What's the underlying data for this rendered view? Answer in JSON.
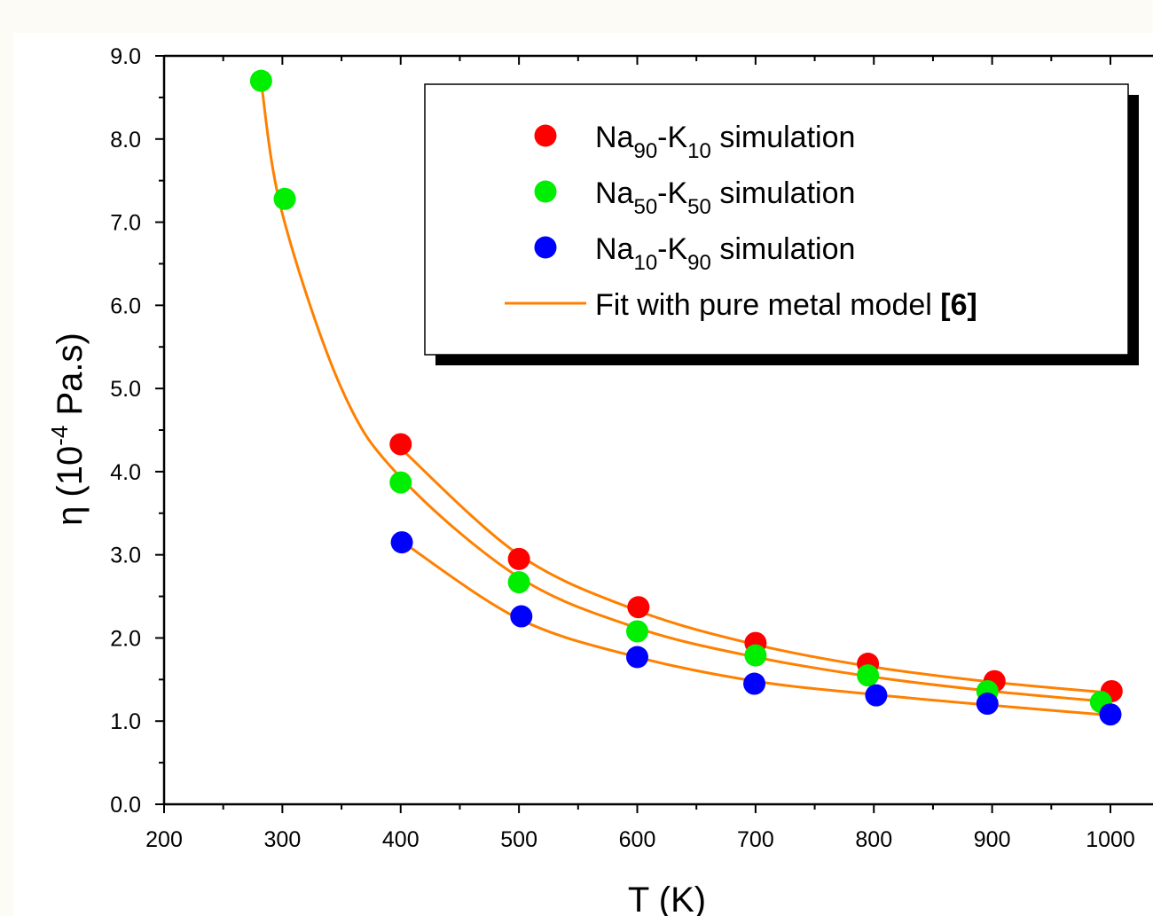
{
  "chart_data": {
    "type": "scatter",
    "title": "",
    "xlabel": {
      "text": "T (K)"
    },
    "ylabel": {
      "symbol": "η",
      "prefix": "(10",
      "exponent": "-4",
      "suffix": " Pa.s)"
    },
    "xlim": [
      200,
      1000
    ],
    "ylim": [
      0,
      9
    ],
    "x_ticks": [
      "200",
      "300",
      "400",
      "500",
      "600",
      "700",
      "800",
      "900",
      "1000"
    ],
    "y_ticks": [
      "0.0",
      "1.0",
      "2.0",
      "3.0",
      "4.0",
      "5.0",
      "6.0",
      "7.0",
      "8.0",
      "9.0"
    ],
    "grid": false,
    "legend_position": "top-right",
    "series": [
      {
        "kind": "points",
        "color": "#ff0000",
        "legend": {
          "base1": "Na",
          "sub1": "90",
          "mid": "-K",
          "sub2": "10",
          "suffix": " simulation"
        },
        "x": [
          400,
          500,
          601,
          700,
          795,
          902,
          1001
        ],
        "y": [
          4.33,
          2.95,
          2.37,
          1.94,
          1.69,
          1.48,
          1.36
        ]
      },
      {
        "kind": "points",
        "color": "#00ee00",
        "legend": {
          "base1": "Na",
          "sub1": "50",
          "mid": "-K",
          "sub2": "50",
          "suffix": " simulation"
        },
        "x": [
          282,
          302,
          400,
          500,
          600,
          700,
          795,
          896,
          992
        ],
        "y": [
          8.7,
          7.28,
          3.87,
          2.67,
          2.08,
          1.79,
          1.55,
          1.36,
          1.23
        ]
      },
      {
        "kind": "points",
        "color": "#0000ff",
        "legend": {
          "base1": "Na",
          "sub1": "10",
          "mid": "-K",
          "sub2": "90",
          "suffix": " simulation"
        },
        "x": [
          401,
          502,
          600,
          699,
          802,
          896,
          1000
        ],
        "y": [
          3.15,
          2.26,
          1.77,
          1.45,
          1.31,
          1.21,
          1.08
        ]
      },
      {
        "kind": "lines",
        "color": "#ff8000",
        "legend": {
          "text": "Fit with pure metal model ",
          "ref": "[6]"
        },
        "curves": [
          {
            "x": [
              400,
              500,
              600,
              700,
              800,
              900,
              1000
            ],
            "y": [
              4.28,
              3.0,
              2.33,
              1.92,
              1.65,
              1.47,
              1.34
            ]
          },
          {
            "x": [
              282,
              300,
              350,
              400,
              500,
              600,
              700,
              800,
              900,
              1000
            ],
            "y": [
              8.69,
              7.1,
              5.0,
              3.93,
              2.73,
              2.12,
              1.77,
              1.53,
              1.36,
              1.23
            ]
          },
          {
            "x": [
              400,
              500,
              600,
              700,
              800,
              900,
              1000
            ],
            "y": [
              3.17,
              2.23,
              1.77,
              1.48,
              1.32,
              1.19,
              1.07
            ]
          }
        ]
      }
    ]
  }
}
